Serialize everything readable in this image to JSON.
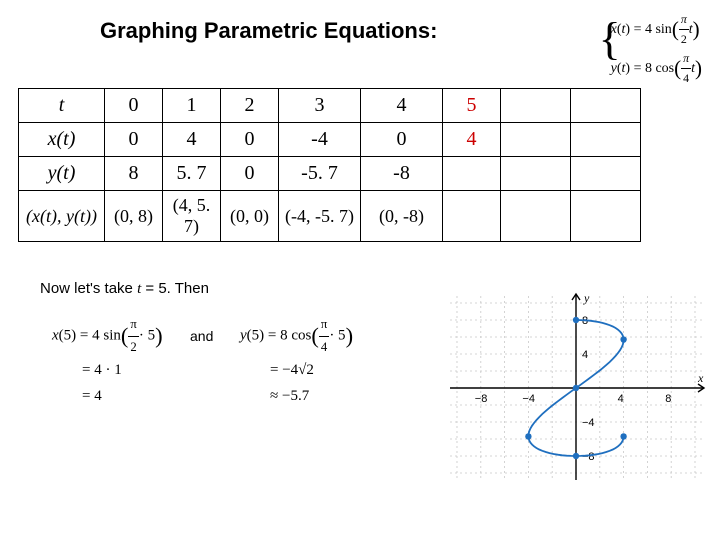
{
  "title": "Graphing Parametric Equations:",
  "equations_box": {
    "x_eq": "x(t) = 4 sin(π/2 · t)",
    "y_eq": "y(t) = 8 cos(π/4 · t)"
  },
  "table": {
    "row_headers": [
      "t",
      "x(t)",
      "y(t)",
      "(x(t), y(t))"
    ],
    "columns": [
      "0",
      "1",
      "2",
      "3",
      "4",
      "5"
    ],
    "x_row": [
      "0",
      "4",
      "0",
      "-4",
      "0",
      "4"
    ],
    "y_row": [
      "8",
      "5. 7",
      "0",
      "-5. 7",
      "-8",
      ""
    ],
    "pair_row": [
      "(0, 8)",
      "(4, 5. 7)",
      "(0, 0)",
      "(-4, -5. 7)",
      "(0, -8)",
      ""
    ],
    "highlight_col_index": 5,
    "highlight_color": "#cc0000",
    "border_color": "#000000",
    "font_family": "Times New Roman",
    "text_color": "#000000"
  },
  "sentence": {
    "pre": "Now let's take  ",
    "var": "t",
    "rest": " = 5.   Then"
  },
  "x5_work": {
    "l1_a": "x(5) = 4 sin",
    "l1_frac_n": "π",
    "l1_frac_d": "2",
    "l1_b": "· 5",
    "l2": "= 4 · 1",
    "l3": "= 4"
  },
  "and_label": "and",
  "y5_work": {
    "l1_a": "y(5) = 8 cos",
    "l1_frac_n": "π",
    "l1_frac_d": "4",
    "l1_b": "· 5",
    "l2": "= −4√2",
    "l3": "≈ −5.7"
  },
  "graph": {
    "type": "parametric-curve",
    "background_color": "#ffffff",
    "grid_color": "#c8c8c8",
    "axis_color": "#000000",
    "curve_color": "#1f6fbf",
    "point_color": "#1f6fbf",
    "xlim": [
      -10,
      10
    ],
    "ylim": [
      -10,
      10
    ],
    "xtick": [
      -8,
      -4,
      4,
      8
    ],
    "ytick": [
      -8,
      -4,
      4,
      8
    ],
    "xlabel": "x",
    "ylabel": "y",
    "label_fontsize": 12,
    "tick_fontsize": 11,
    "points": [
      [
        0,
        8
      ],
      [
        4,
        5.7
      ],
      [
        0,
        0
      ],
      [
        -4,
        -5.7
      ],
      [
        0,
        -8
      ],
      [
        4,
        -5.7
      ]
    ],
    "curve_t_range": [
      0,
      5
    ],
    "curve_samples": 80
  }
}
